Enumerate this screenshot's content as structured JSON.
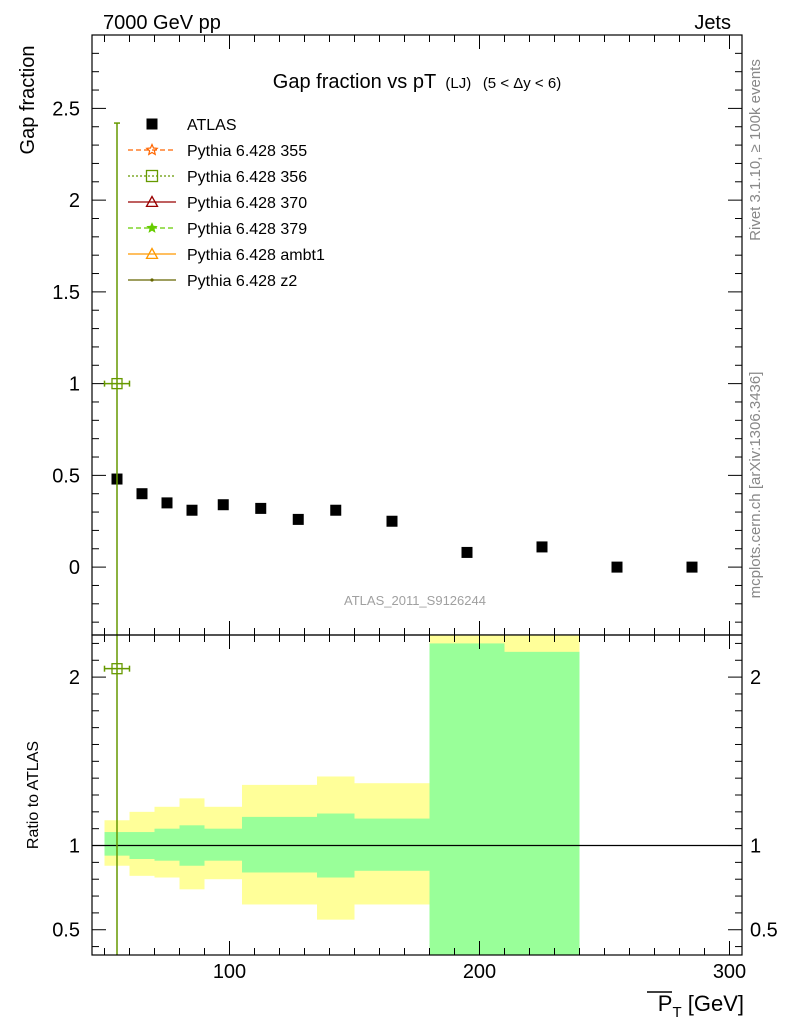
{
  "header": {
    "left": "7000 GeV pp",
    "right": "Jets"
  },
  "title": {
    "main": "Gap fraction vs pT",
    "sub": "(LJ)",
    "cut": "(5 < Δy < 6)"
  },
  "side_labels": {
    "top": "Rivet 3.1.10, ≥ 100k events",
    "bottom": "mcplots.cern.ch [arXiv:1306.3436]"
  },
  "watermark": "ATLAS_2011_S9126244",
  "colors": {
    "data": "#000000",
    "p355": "#ff6600",
    "p356": "#669900",
    "p370": "#990000",
    "p379": "#66cc00",
    "ambt1": "#ff9900",
    "z2": "#666600",
    "band_inner": "#99ff99",
    "band_outer": "#ffff99"
  },
  "chart_data": [
    {
      "type": "scatter",
      "ylabel": "Gap fraction",
      "xlim": [
        45,
        305
      ],
      "ylim": [
        -0.37,
        2.9
      ],
      "y_ticks": [
        0,
        0.5,
        1,
        1.5,
        2,
        2.5
      ],
      "y_tick_labels": [
        "0",
        "0.5",
        "1",
        "1.5",
        "2",
        "2.5"
      ],
      "legend_position": "top-left",
      "series": [
        {
          "key": "data",
          "name": "ATLAS",
          "marker": "square",
          "x": [
            55,
            65,
            75,
            85,
            97.5,
            112.5,
            127.5,
            142.5,
            165,
            195,
            225,
            255,
            285
          ],
          "y": [
            0.48,
            0.4,
            0.35,
            0.31,
            0.34,
            0.32,
            0.26,
            0.31,
            0.25,
            0.08,
            0.11,
            0.0,
            0.0
          ]
        },
        {
          "key": "p355",
          "name": "Pythia 6.428 355",
          "marker": "star",
          "dash": "5,3",
          "x": [],
          "y": []
        },
        {
          "key": "p356",
          "name": "Pythia 6.428 356",
          "marker": "open-square",
          "dash": "2,2",
          "x": [
            55
          ],
          "y": [
            1.0
          ],
          "xerr": [
            5
          ],
          "yerr_top": 2.42
        },
        {
          "key": "p370",
          "name": "Pythia 6.428 370",
          "marker": "open-triangle",
          "dash": "",
          "x": [],
          "y": []
        },
        {
          "key": "p379",
          "name": "Pythia 6.428 379",
          "marker": "small-star",
          "dash": "5,3",
          "x": [],
          "y": []
        },
        {
          "key": "ambt1",
          "name": "Pythia 6.428 ambt1",
          "marker": "open-triangle",
          "dash": "",
          "x": [],
          "y": []
        },
        {
          "key": "z2",
          "name": "Pythia 6.428 z2",
          "marker": "dot",
          "dash": "",
          "x": [],
          "y": []
        }
      ]
    },
    {
      "type": "area",
      "ylabel": "Ratio to ATLAS",
      "xlabel": "P_T [GeV]",
      "xlim": [
        45,
        305
      ],
      "ylim": [
        0.35,
        2.25
      ],
      "x_ticks": [
        100,
        200,
        300
      ],
      "x_tick_labels": [
        "100",
        "200",
        "300"
      ],
      "y_ticks": [
        0.5,
        1,
        2
      ],
      "y_tick_labels": [
        "0.5",
        "1",
        "2"
      ],
      "reference_line": 1,
      "bins": [
        {
          "x": [
            50,
            60
          ],
          "inner": [
            0.94,
            1.08
          ],
          "outer": [
            0.88,
            1.15
          ]
        },
        {
          "x": [
            60,
            70
          ],
          "inner": [
            0.92,
            1.08
          ],
          "outer": [
            0.82,
            1.2
          ]
        },
        {
          "x": [
            70,
            80
          ],
          "inner": [
            0.91,
            1.1
          ],
          "outer": [
            0.81,
            1.23
          ]
        },
        {
          "x": [
            80,
            90
          ],
          "inner": [
            0.88,
            1.12
          ],
          "outer": [
            0.74,
            1.28
          ]
        },
        {
          "x": [
            90,
            105
          ],
          "inner": [
            0.91,
            1.1
          ],
          "outer": [
            0.8,
            1.23
          ]
        },
        {
          "x": [
            105,
            120
          ],
          "inner": [
            0.84,
            1.17
          ],
          "outer": [
            0.65,
            1.36
          ]
        },
        {
          "x": [
            120,
            135
          ],
          "inner": [
            0.84,
            1.17
          ],
          "outer": [
            0.65,
            1.36
          ]
        },
        {
          "x": [
            135,
            150
          ],
          "inner": [
            0.81,
            1.19
          ],
          "outer": [
            0.56,
            1.41
          ]
        },
        {
          "x": [
            150,
            180
          ],
          "inner": [
            0.85,
            1.16
          ],
          "outer": [
            0.65,
            1.37
          ]
        },
        {
          "x": [
            180,
            210
          ],
          "inner": [
            0.35,
            2.2
          ],
          "outer": [
            0.35,
            2.3
          ]
        },
        {
          "x": [
            210,
            240
          ],
          "inner": [
            0.35,
            2.15
          ],
          "outer": [
            0.35,
            2.3
          ]
        }
      ],
      "series": [
        {
          "key": "p356",
          "name": "Pythia 6.428 356",
          "x": [
            55
          ],
          "y": [
            2.05
          ],
          "xerr": [
            5
          ]
        }
      ]
    }
  ]
}
